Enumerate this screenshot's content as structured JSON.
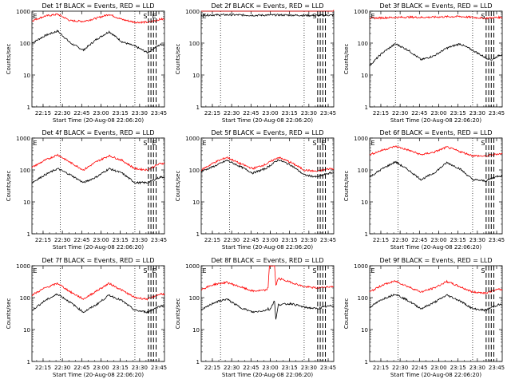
{
  "figure": {
    "xlabel_template": "Start Time (20-Aug-08 22:06:20)",
    "ylabel": "Counts/sec",
    "xtick_labels": [
      "22:15",
      "22:30",
      "22:45",
      "23:00",
      "23:15",
      "23:30",
      "23:45"
    ],
    "ytick_labels": [
      "1",
      "10",
      "100",
      "1000"
    ],
    "colors": {
      "events": "#000000",
      "lld": "#ff0000"
    }
  },
  "chart_data": [
    {
      "type": "line",
      "title": "Det 1f BLACK = Events, RED = LLD",
      "xlabel": "Start Time (20-Aug-08 22:06:20)",
      "ylabel": "Counts/sec",
      "x_unit": "minutes since 22:06:20",
      "xlim": [
        0,
        103
      ],
      "ylim": [
        1,
        1000
      ],
      "yscale": "log",
      "vlines_dotted": [
        22,
        80
      ],
      "vlines_dashed": [
        90.5,
        92.5,
        94.5,
        96.5
      ],
      "markers": [
        "E",
        "S",
        "E"
      ],
      "x": [
        0,
        10,
        20,
        30,
        40,
        50,
        60,
        70,
        80,
        90,
        95,
        100,
        103
      ],
      "series": [
        {
          "name": "Events",
          "color": "#000000",
          "values": [
            100,
            170,
            240,
            100,
            60,
            130,
            230,
            110,
            80,
            50,
            70,
            90,
            90
          ]
        },
        {
          "name": "LLD",
          "color": "#ff0000",
          "values": [
            500,
            700,
            800,
            500,
            480,
            600,
            800,
            550,
            450,
            450,
            500,
            560,
            560
          ]
        }
      ]
    },
    {
      "type": "line",
      "title": "Det 2f BLACK = Events, RED = LLD",
      "xlabel": "Start Time (20-Aug-08 22:06:20)",
      "ylabel": "Counts/sec",
      "x_unit": "minutes since 22:06:20",
      "xlim": [
        0,
        103
      ],
      "ylim": [
        1,
        1000
      ],
      "yscale": "log",
      "vlines_dotted": [
        15,
        80
      ],
      "vlines_dashed": [
        90.5,
        92.5,
        94.5,
        96.5
      ],
      "markers": [
        "E",
        "S"
      ],
      "x": [
        0,
        10,
        20,
        30,
        40,
        50,
        60,
        70,
        80,
        90,
        95,
        100,
        103
      ],
      "series": [
        {
          "name": "Events",
          "color": "#000000",
          "values": [
            750,
            760,
            770,
            760,
            740,
            750,
            760,
            750,
            740,
            730,
            740,
            750,
            750
          ]
        },
        {
          "name": "LLD",
          "color": "#ff0000",
          "values": [
            1100,
            1100,
            1120,
            1100,
            1080,
            1100,
            1110,
            1100,
            1090,
            1080,
            1090,
            1100,
            1100
          ]
        }
      ]
    },
    {
      "type": "line",
      "title": "Det 3f BLACK = Events, RED = LLD",
      "xlabel": "Start Time (20-Aug-08 22:06:20)",
      "ylabel": "Counts/sec",
      "x_unit": "minutes since 22:06:20",
      "xlim": [
        0,
        103
      ],
      "ylim": [
        1,
        1000
      ],
      "yscale": "log",
      "vlines_dotted": [
        20,
        80
      ],
      "vlines_dashed": [
        90.5,
        92.5,
        94.5,
        96.5
      ],
      "markers": [
        "E",
        "S"
      ],
      "x": [
        0,
        10,
        20,
        30,
        40,
        50,
        60,
        70,
        80,
        90,
        95,
        100,
        103
      ],
      "series": [
        {
          "name": "Events",
          "color": "#000000",
          "values": [
            20,
            50,
            95,
            60,
            30,
            40,
            70,
            95,
            60,
            35,
            30,
            40,
            45
          ]
        },
        {
          "name": "LLD",
          "color": "#ff0000",
          "values": [
            600,
            620,
            640,
            650,
            640,
            650,
            670,
            680,
            640,
            600,
            620,
            640,
            640
          ]
        }
      ]
    },
    {
      "type": "line",
      "title": "Det 4f BLACK = Events, RED = LLD",
      "xlabel": "Start Time (20-Aug-08 22:06:20)",
      "ylabel": "Counts/sec",
      "x_unit": "minutes since 22:06:20",
      "xlim": [
        0,
        103
      ],
      "ylim": [
        1,
        1000
      ],
      "yscale": "log",
      "vlines_dotted": [
        22,
        80
      ],
      "vlines_dashed": [
        90.5,
        92.5,
        94.5,
        96.5
      ],
      "markers": [
        "E",
        "S",
        "E"
      ],
      "x": [
        0,
        10,
        20,
        30,
        40,
        50,
        60,
        70,
        80,
        90,
        95,
        100,
        103
      ],
      "series": [
        {
          "name": "Events",
          "color": "#000000",
          "values": [
            40,
            70,
            110,
            70,
            40,
            60,
            110,
            80,
            40,
            40,
            50,
            60,
            60
          ]
        },
        {
          "name": "LLD",
          "color": "#ff0000",
          "values": [
            120,
            200,
            300,
            170,
            100,
            180,
            280,
            200,
            110,
            100,
            130,
            160,
            160
          ]
        }
      ]
    },
    {
      "type": "line",
      "title": "Det 5f BLACK = Events, RED = LLD",
      "xlabel": "Start Time (20-Aug-08 22:06:20)",
      "ylabel": "Counts/sec",
      "x_unit": "minutes since 22:06:20",
      "xlim": [
        0,
        103
      ],
      "ylim": [
        1,
        1000
      ],
      "yscale": "log",
      "vlines_dotted": [
        22,
        80
      ],
      "vlines_dashed": [
        90.5,
        92.5,
        94.5,
        96.5
      ],
      "markers": [
        "E",
        "S",
        "E"
      ],
      "x": [
        0,
        10,
        20,
        30,
        40,
        50,
        60,
        70,
        80,
        90,
        95,
        100,
        103
      ],
      "series": [
        {
          "name": "Events",
          "color": "#000000",
          "values": [
            90,
            130,
            200,
            130,
            80,
            110,
            210,
            140,
            70,
            60,
            70,
            80,
            80
          ]
        },
        {
          "name": "LLD",
          "color": "#ff0000",
          "values": [
            100,
            170,
            250,
            160,
            110,
            150,
            250,
            170,
            100,
            90,
            100,
            110,
            110
          ]
        }
      ]
    },
    {
      "type": "line",
      "title": "Det 6f BLACK = Events, RED = LLD",
      "xlabel": "Start Time (20-Aug-08 22:06:20)",
      "ylabel": "Counts/sec",
      "x_unit": "minutes since 22:06:20",
      "xlim": [
        0,
        103
      ],
      "ylim": [
        1,
        1000
      ],
      "yscale": "log",
      "vlines_dotted": [
        22,
        80
      ],
      "vlines_dashed": [
        90.5,
        92.5,
        94.5,
        96.5
      ],
      "markers": [
        "E",
        "S"
      ],
      "x": [
        0,
        10,
        20,
        30,
        40,
        50,
        60,
        70,
        80,
        90,
        95,
        100,
        103
      ],
      "series": [
        {
          "name": "Events",
          "color": "#000000",
          "values": [
            60,
            110,
            180,
            100,
            50,
            80,
            170,
            110,
            50,
            45,
            55,
            65,
            65
          ]
        },
        {
          "name": "LLD",
          "color": "#ff0000",
          "values": [
            300,
            420,
            550,
            420,
            300,
            360,
            520,
            380,
            280,
            270,
            300,
            320,
            320
          ]
        }
      ]
    },
    {
      "type": "line",
      "title": "Det 7f BLACK = Events, RED = LLD",
      "xlabel": "Start Time (20-Aug-08 22:06:20)",
      "ylabel": "Counts/sec",
      "x_unit": "minutes since 22:06:20",
      "xlim": [
        0,
        103
      ],
      "ylim": [
        1,
        1000
      ],
      "yscale": "log",
      "vlines_dotted": [
        22,
        80
      ],
      "vlines_dashed": [
        90.5,
        92.5,
        94.5,
        96.5
      ],
      "markers": [
        "E",
        "S",
        "E"
      ],
      "x": [
        0,
        10,
        20,
        30,
        40,
        50,
        60,
        70,
        80,
        90,
        95,
        100,
        103
      ],
      "series": [
        {
          "name": "Events",
          "color": "#000000",
          "values": [
            40,
            80,
            130,
            70,
            35,
            60,
            120,
            80,
            40,
            35,
            45,
            55,
            55
          ]
        },
        {
          "name": "LLD",
          "color": "#ff0000",
          "values": [
            120,
            200,
            280,
            150,
            90,
            160,
            280,
            170,
            100,
            90,
            110,
            130,
            130
          ]
        }
      ]
    },
    {
      "type": "line",
      "title": "Det 8f BLACK = Events, RED = LLD",
      "xlabel": "Start Time (20-Aug-08 22:06:20)",
      "ylabel": "Counts/sec",
      "x_unit": "minutes since 22:06:20",
      "xlim": [
        0,
        103
      ],
      "ylim": [
        1,
        1000
      ],
      "yscale": "log",
      "vlines_dotted": [
        15,
        80
      ],
      "vlines_dashed": [
        90.5,
        92.5,
        94.5,
        96.5
      ],
      "markers": [
        "E",
        "S"
      ],
      "x": [
        0,
        10,
        20,
        30,
        40,
        50,
        52,
        53,
        57,
        58,
        60,
        70,
        80,
        90,
        95,
        100,
        103
      ],
      "series": [
        {
          "name": "Events",
          "color": "#000000",
          "values": [
            40,
            70,
            90,
            50,
            35,
            40,
            45,
            40,
            80,
            20,
            60,
            65,
            50,
            45,
            50,
            55,
            55
          ]
        },
        {
          "name": "LLD",
          "color": "#ff0000",
          "values": [
            180,
            260,
            300,
            220,
            160,
            170,
            200,
            1000,
            1000,
            240,
            400,
            300,
            220,
            200,
            210,
            220,
            220
          ]
        }
      ]
    },
    {
      "type": "line",
      "title": "Det 9f BLACK = Events, RED = LLD",
      "xlabel": "Start Time (20-Aug-08 22:06:20)",
      "ylabel": "Counts/sec",
      "x_unit": "minutes since 22:06:20",
      "xlim": [
        0,
        103
      ],
      "ylim": [
        1,
        1000
      ],
      "yscale": "log",
      "vlines_dotted": [
        22,
        80
      ],
      "vlines_dashed": [
        90.5,
        92.5,
        94.5,
        96.5
      ],
      "markers": [
        "E",
        "S"
      ],
      "x": [
        0,
        10,
        20,
        30,
        40,
        50,
        60,
        70,
        80,
        90,
        95,
        100,
        103
      ],
      "series": [
        {
          "name": "Events",
          "color": "#000000",
          "values": [
            50,
            90,
            130,
            80,
            45,
            70,
            120,
            80,
            45,
            40,
            50,
            60,
            60
          ]
        },
        {
          "name": "LLD",
          "color": "#ff0000",
          "values": [
            150,
            250,
            330,
            220,
            150,
            200,
            320,
            220,
            150,
            140,
            160,
            180,
            180
          ]
        }
      ]
    }
  ]
}
